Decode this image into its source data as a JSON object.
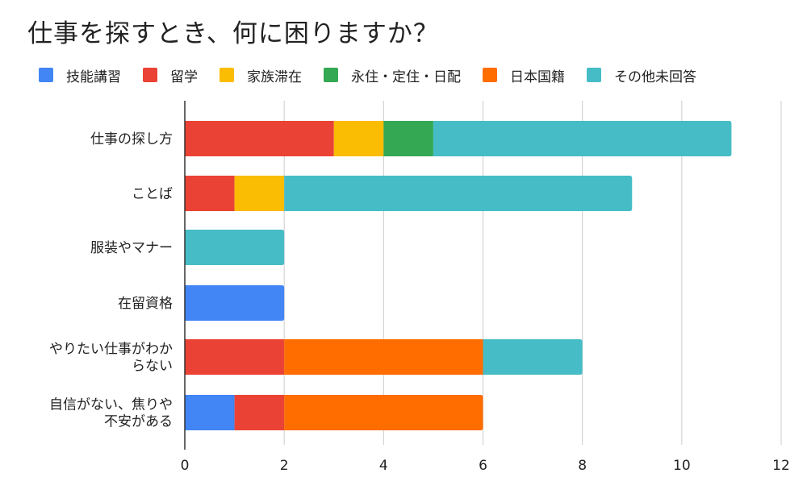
{
  "chart_data": {
    "type": "bar",
    "orientation": "horizontal",
    "stacked": true,
    "title": "仕事を探すとき、何に困りますか？",
    "categories": [
      [
        "仕事の探し方"
      ],
      [
        "ことば"
      ],
      [
        "服装やマナー"
      ],
      [
        "在留資格"
      ],
      [
        "やりたい仕事がわか",
        "らない"
      ],
      [
        "自信がない、焦りや",
        "不安がある"
      ]
    ],
    "series": [
      {
        "name": "技能講習",
        "color": "#4285F4",
        "values": [
          0,
          0,
          0,
          2,
          0,
          1
        ]
      },
      {
        "name": "留学",
        "color": "#EA4335",
        "values": [
          3,
          1,
          0,
          0,
          2,
          1
        ]
      },
      {
        "name": "家族滞在",
        "color": "#FBBC04",
        "values": [
          1,
          1,
          0,
          0,
          0,
          0
        ]
      },
      {
        "name": "永住・定住・日配",
        "color": "#34A853",
        "values": [
          1,
          0,
          0,
          0,
          0,
          0
        ]
      },
      {
        "name": "日本国籍",
        "color": "#FF6D01",
        "values": [
          0,
          0,
          0,
          0,
          4,
          4
        ]
      },
      {
        "name": "その他未回答",
        "color": "#46BDC6",
        "values": [
          6,
          7,
          2,
          0,
          2,
          0
        ]
      }
    ],
    "xlim": [
      0,
      12
    ],
    "xticks": [
      0,
      2,
      4,
      6,
      8,
      10,
      12
    ],
    "grid": true,
    "legend_position": "top-left",
    "xlabel": "",
    "ylabel": ""
  }
}
